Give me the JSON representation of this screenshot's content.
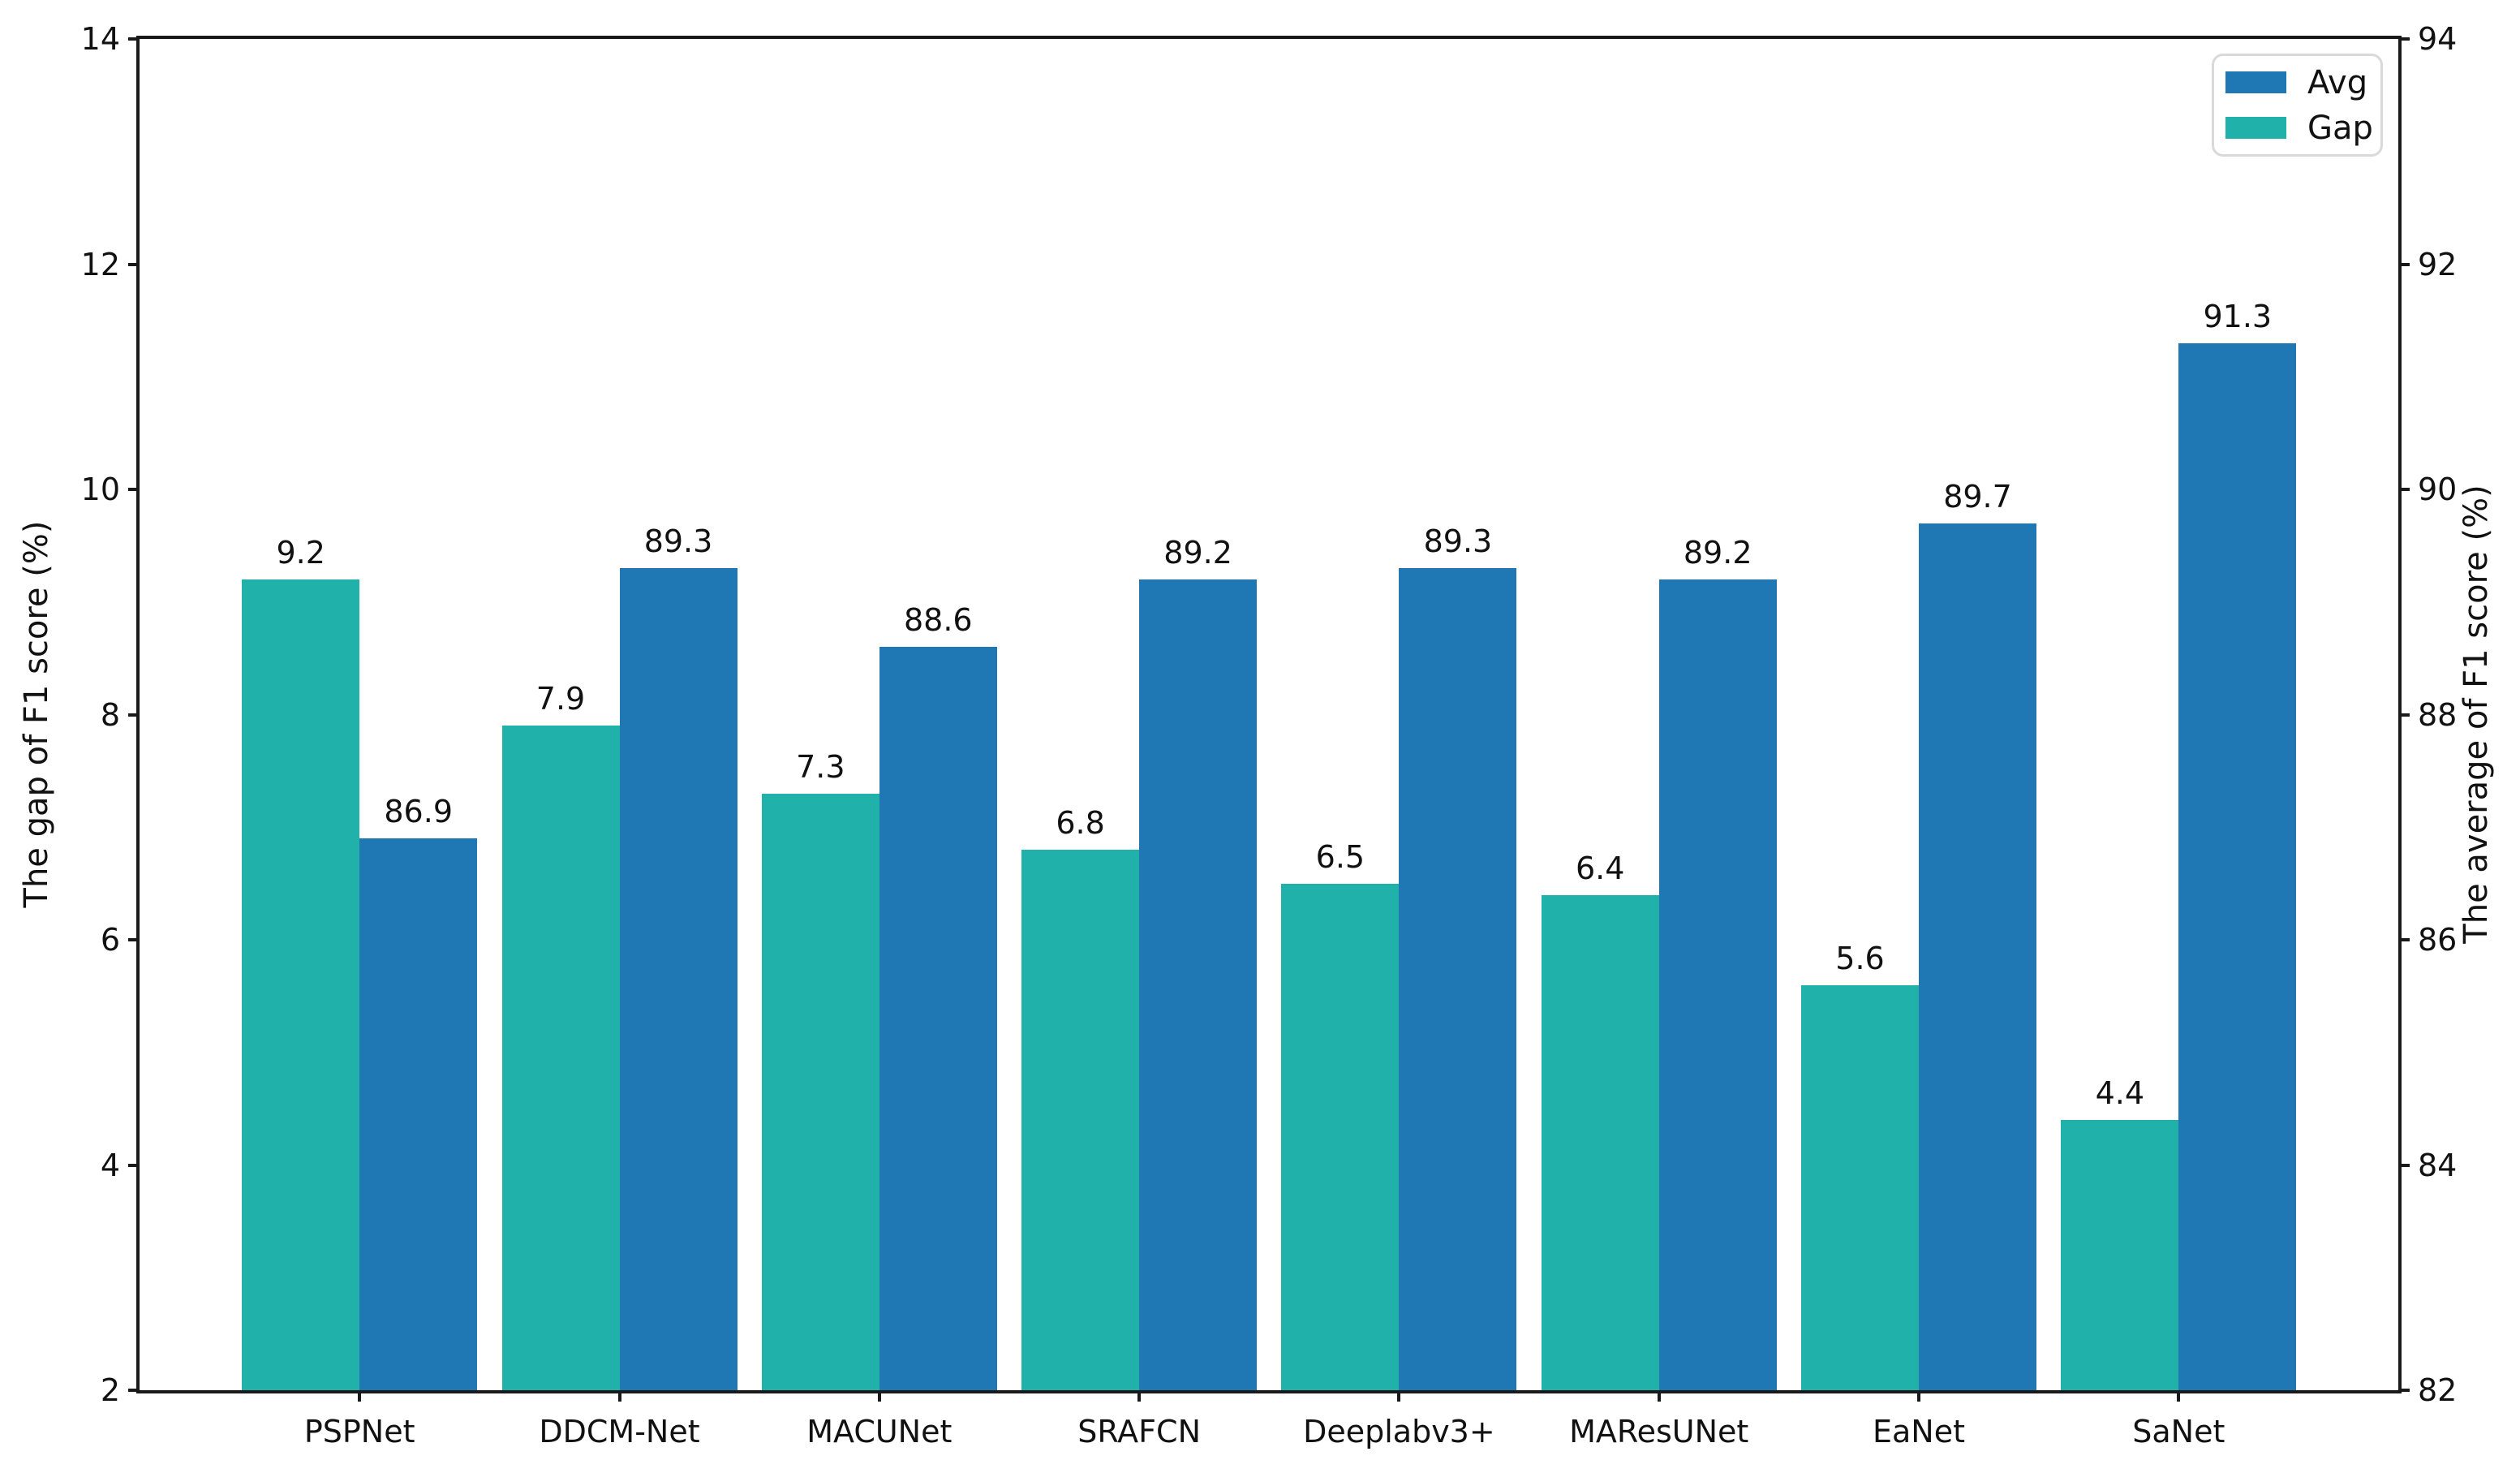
{
  "chart_data": {
    "type": "bar",
    "categories": [
      "PSPNet",
      "DDCM-Net",
      "MACUNet",
      "SRAFCN",
      "Deeplabv3+",
      "MAResUNet",
      "EaNet",
      "SaNet"
    ],
    "series": [
      {
        "name": "Avg",
        "axis": "right",
        "color": "#1f77b4",
        "values": [
          86.9,
          89.3,
          88.6,
          89.2,
          89.3,
          89.2,
          89.7,
          91.3
        ]
      },
      {
        "name": "Gap",
        "axis": "left",
        "color": "#20b2aa",
        "values": [
          9.2,
          7.9,
          7.3,
          6.8,
          6.5,
          6.4,
          5.6,
          4.4
        ]
      }
    ],
    "left_axis": {
      "label": "The gap of F1 score (%)",
      "min": 2,
      "max": 14,
      "ticks": [
        2,
        4,
        6,
        8,
        10,
        12,
        14
      ]
    },
    "right_axis": {
      "label": "The average of F1 score (%)",
      "min": 82,
      "max": 94,
      "ticks": [
        82,
        84,
        86,
        88,
        90,
        92,
        94
      ]
    },
    "legend": {
      "position": "upper right",
      "entries": [
        "Avg",
        "Gap"
      ]
    },
    "bar_value_labels": true,
    "grid": false,
    "colors": {
      "avg": "#1f77b4",
      "gap": "#20b2aa",
      "spine": "#1a1a1a",
      "text": "#111111",
      "legend_border": "#d9d9d9",
      "background": "#ffffff"
    }
  }
}
